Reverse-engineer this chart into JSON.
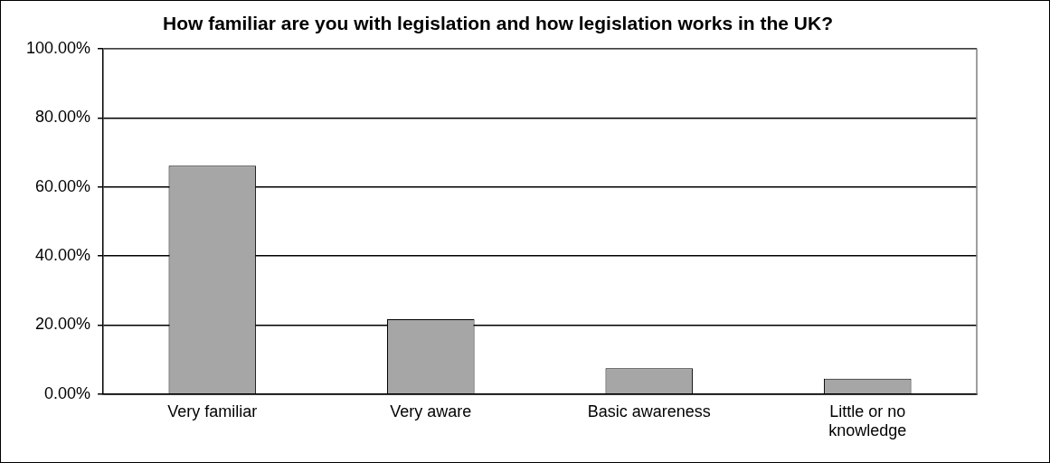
{
  "chart_data": {
    "type": "bar",
    "title": "How familiar are you with legislation and how legislation works in the UK?",
    "categories": [
      "Very familiar",
      "Very aware",
      "Basic awareness",
      "Little or no knowledge"
    ],
    "values": [
      66.2,
      21.7,
      7.5,
      4.5
    ],
    "color": "#a6a6a6",
    "ylim": [
      0,
      100
    ],
    "yticks": [
      {
        "value": 0,
        "label": "0.00%"
      },
      {
        "value": 20,
        "label": "20.00%"
      },
      {
        "value": 40,
        "label": "40.00%"
      },
      {
        "value": 60,
        "label": "60.00%"
      },
      {
        "value": 80,
        "label": "80.00%"
      },
      {
        "value": 100,
        "label": "100.00%"
      }
    ],
    "grid": "y",
    "legend": false
  }
}
